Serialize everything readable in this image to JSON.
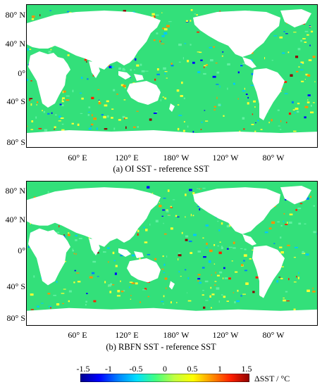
{
  "panels": [
    {
      "caption": "(a) OI SST - reference SST",
      "lat_ticks": [
        "80° N",
        "40° N",
        "0°",
        "40° S",
        "80° S"
      ],
      "lon_ticks": [
        "60° E",
        "120° E",
        "180° W",
        "120° W",
        "80° W"
      ]
    },
    {
      "caption": "(b) RBFN SST - reference SST",
      "lat_ticks": [
        "80° N",
        "40° N",
        "0°",
        "40° S",
        "80° S"
      ],
      "lon_ticks": [
        "60° E",
        "120° E",
        "180° W",
        "120° W",
        "80° W"
      ]
    }
  ],
  "colorbar": {
    "title": "ΔSST / °C",
    "ticks": [
      "-1.5",
      "-1",
      "-0.5",
      "0",
      "0.5",
      "1",
      "1.5"
    ],
    "range": [
      -1.5,
      1.5
    ],
    "colors": [
      "#00008f",
      "#0000ff",
      "#0080ff",
      "#00e0ff",
      "#40ff80",
      "#c0ff40",
      "#ffff00",
      "#ff9000",
      "#ff2000",
      "#8f0000"
    ]
  },
  "map": {
    "ocean_color": "#33e07a",
    "land_color": "#ffffff"
  }
}
